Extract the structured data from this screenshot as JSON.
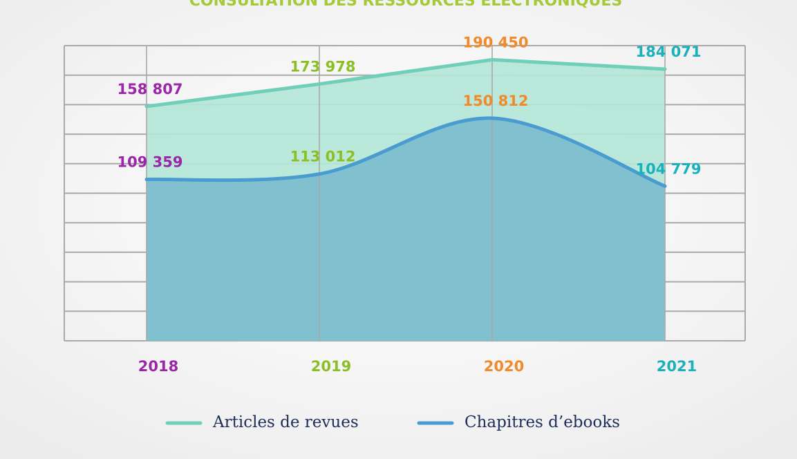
{
  "chart_data": {
    "type": "area",
    "title": "CONSULTATION DES RESSOURCES ÉLECTRONIQUES",
    "title_color": "#a6c93a",
    "categories": [
      "2018",
      "2019",
      "2020",
      "2021"
    ],
    "category_colors": [
      "#9b27a8",
      "#8cbf26",
      "#f08a2b",
      "#1ab0bc"
    ],
    "series": [
      {
        "name": "Articles de revues",
        "color": "#6fcfb8",
        "fill": "#b3e6d6",
        "smooth": false,
        "values": [
          158807,
          173978,
          190450,
          184071
        ],
        "value_labels": [
          "158 807",
          "173 978",
          "190 450",
          "184 071"
        ]
      },
      {
        "name": "Chapitres d’ebooks",
        "color": "#4a9bcf",
        "fill": "#7bbccd",
        "smooth": true,
        "values": [
          109359,
          113012,
          150812,
          104779
        ],
        "value_labels": [
          "109 359",
          "113 012",
          "150 812",
          "104 779"
        ]
      }
    ],
    "ylim": [
      0,
      200000
    ],
    "yticks": [
      0,
      20000,
      40000,
      60000,
      80000,
      100000,
      120000,
      140000,
      160000,
      180000,
      200000
    ],
    "grid": true
  }
}
